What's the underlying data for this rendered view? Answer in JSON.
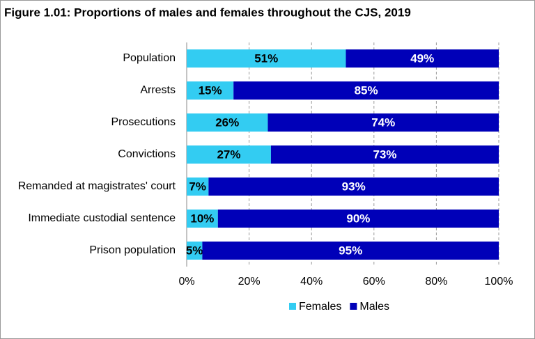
{
  "chart_data": {
    "type": "bar",
    "orientation": "horizontal",
    "stacked": true,
    "title": "Figure 1.01: Proportions of males and females throughout the CJS, 2019",
    "categories": [
      "Population",
      "Arrests",
      "Prosecutions",
      "Convictions",
      "Remanded at magistrates' court",
      "Immediate custodial sentence",
      "Prison population"
    ],
    "series": [
      {
        "name": "Females",
        "color": "#33ccf2",
        "label_color": "#000000",
        "values": [
          51,
          15,
          26,
          27,
          7,
          10,
          5
        ],
        "value_labels": [
          "51%",
          "15%",
          "26%",
          "27%",
          "7%",
          "10%",
          "5%"
        ]
      },
      {
        "name": "Males",
        "color": "#0000b8",
        "label_color": "#ffffff",
        "values": [
          49,
          85,
          74,
          73,
          93,
          90,
          95
        ],
        "value_labels": [
          "49%",
          "85%",
          "74%",
          "73%",
          "93%",
          "90%",
          "95%"
        ]
      }
    ],
    "xlim": [
      0,
      100
    ],
    "xticks": [
      {
        "value": 0,
        "label": "0%"
      },
      {
        "value": 20,
        "label": "20%"
      },
      {
        "value": 40,
        "label": "40%"
      },
      {
        "value": 60,
        "label": "60%"
      },
      {
        "value": 80,
        "label": "80%"
      },
      {
        "value": 100,
        "label": "100%"
      }
    ],
    "grid": true,
    "legend": "bottom"
  }
}
